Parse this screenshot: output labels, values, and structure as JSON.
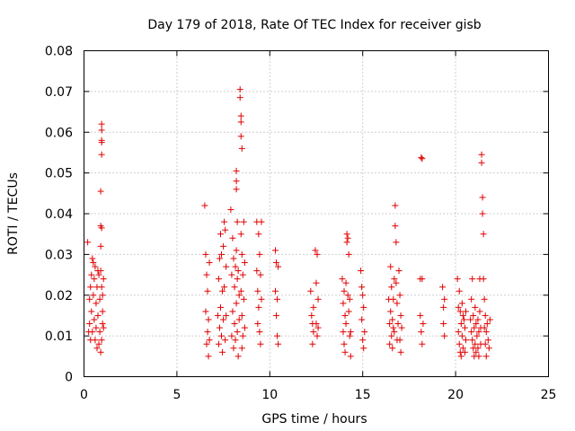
{
  "chart_data": {
    "type": "scatter",
    "title": "Day 179 of 2018, Rate Of TEC Index for receiver gisb",
    "xlabel": "GPS time / hours",
    "ylabel": "ROTI / TECUs",
    "xlim": [
      0,
      25
    ],
    "ylim": [
      0,
      0.08
    ],
    "xticks": [
      0,
      5,
      10,
      15,
      20,
      25
    ],
    "xtick_labels": [
      "0",
      "5",
      "10",
      "15",
      "20",
      "25"
    ],
    "yticks": [
      0,
      0.01,
      0.02,
      0.03,
      0.04,
      0.05,
      0.06,
      0.07,
      0.08
    ],
    "ytick_labels": [
      "0",
      "0.01",
      "0.02",
      "0.03",
      "0.04",
      "0.05",
      "0.06",
      "0.07",
      "0.08"
    ],
    "grid": true,
    "marker": "+",
    "color": "#e00000",
    "series": [
      {
        "name": "ROTI",
        "points": [
          [
            0.2,
            0.033
          ],
          [
            0.25,
            0.011
          ],
          [
            0.3,
            0.019
          ],
          [
            0.3,
            0.013
          ],
          [
            0.35,
            0.022
          ],
          [
            0.35,
            0.009
          ],
          [
            0.4,
            0.016
          ],
          [
            0.4,
            0.025
          ],
          [
            0.45,
            0.029
          ],
          [
            0.45,
            0.011
          ],
          [
            0.5,
            0.028
          ],
          [
            0.5,
            0.02
          ],
          [
            0.55,
            0.024
          ],
          [
            0.55,
            0.014
          ],
          [
            0.6,
            0.027
          ],
          [
            0.6,
            0.009
          ],
          [
            0.65,
            0.018
          ],
          [
            0.65,
            0.012
          ],
          [
            0.7,
            0.022
          ],
          [
            0.7,
            0.007
          ],
          [
            0.75,
            0.026
          ],
          [
            0.75,
            0.015
          ],
          [
            0.8,
            0.025
          ],
          [
            0.8,
            0.008
          ],
          [
            0.85,
            0.019
          ],
          [
            0.85,
            0.011
          ],
          [
            0.9,
            0.0455
          ],
          [
            0.9,
            0.037
          ],
          [
            0.9,
            0.032
          ],
          [
            0.9,
            0.026
          ],
          [
            0.9,
            0.006
          ],
          [
            0.95,
            0.062
          ],
          [
            0.95,
            0.0605
          ],
          [
            0.95,
            0.058
          ],
          [
            0.95,
            0.0575
          ],
          [
            0.95,
            0.0545
          ],
          [
            0.95,
            0.0365
          ],
          [
            0.95,
            0.022
          ],
          [
            0.95,
            0.009
          ],
          [
            1.0,
            0.02
          ],
          [
            1.0,
            0.013
          ],
          [
            1.0,
            0.016
          ],
          [
            1.05,
            0.024
          ],
          [
            1.05,
            0.012
          ],
          [
            6.5,
            0.042
          ],
          [
            6.55,
            0.03
          ],
          [
            6.55,
            0.016
          ],
          [
            6.6,
            0.025
          ],
          [
            6.6,
            0.008
          ],
          [
            6.65,
            0.021
          ],
          [
            6.65,
            0.011
          ],
          [
            6.7,
            0.014
          ],
          [
            6.7,
            0.005
          ],
          [
            6.75,
            0.028
          ],
          [
            6.75,
            0.009
          ],
          [
            7.2,
            0.015
          ],
          [
            7.25,
            0.024
          ],
          [
            7.25,
            0.008
          ],
          [
            7.3,
            0.029
          ],
          [
            7.3,
            0.012
          ],
          [
            7.35,
            0.035
          ],
          [
            7.35,
            0.017
          ],
          [
            7.4,
            0.03
          ],
          [
            7.4,
            0.01
          ],
          [
            7.45,
            0.021
          ],
          [
            7.45,
            0.006
          ],
          [
            7.5,
            0.032
          ],
          [
            7.5,
            0.014
          ],
          [
            7.55,
            0.038
          ],
          [
            7.55,
            0.022
          ],
          [
            7.6,
            0.036
          ],
          [
            7.6,
            0.009
          ],
          [
            7.65,
            0.027
          ],
          [
            7.65,
            0.015
          ],
          [
            7.9,
            0.041
          ],
          [
            7.95,
            0.025
          ],
          [
            7.95,
            0.01
          ],
          [
            8.0,
            0.034
          ],
          [
            8.0,
            0.016
          ],
          [
            8.05,
            0.029
          ],
          [
            8.05,
            0.007
          ],
          [
            8.1,
            0.022
          ],
          [
            8.1,
            0.013
          ],
          [
            8.15,
            0.027
          ],
          [
            8.15,
            0.009
          ],
          [
            8.2,
            0.0505
          ],
          [
            8.2,
            0.048
          ],
          [
            8.2,
            0.046
          ],
          [
            8.2,
            0.031
          ],
          [
            8.2,
            0.018
          ],
          [
            8.25,
            0.038
          ],
          [
            8.25,
            0.024
          ],
          [
            8.25,
            0.011
          ],
          [
            8.3,
            0.026
          ],
          [
            8.3,
            0.005
          ],
          [
            8.35,
            0.02
          ],
          [
            8.35,
            0.014
          ],
          [
            8.4,
            0.0705
          ],
          [
            8.4,
            0.0685
          ],
          [
            8.45,
            0.064
          ],
          [
            8.45,
            0.0625
          ],
          [
            8.45,
            0.059
          ],
          [
            8.45,
            0.035
          ],
          [
            8.45,
            0.021
          ],
          [
            8.5,
            0.056
          ],
          [
            8.5,
            0.03
          ],
          [
            8.5,
            0.015
          ],
          [
            8.5,
            0.007
          ],
          [
            8.55,
            0.025
          ],
          [
            8.55,
            0.01
          ],
          [
            8.6,
            0.038
          ],
          [
            8.6,
            0.019
          ],
          [
            8.65,
            0.028
          ],
          [
            8.65,
            0.012
          ],
          [
            9.3,
            0.038
          ],
          [
            9.3,
            0.026
          ],
          [
            9.35,
            0.021
          ],
          [
            9.35,
            0.013
          ],
          [
            9.4,
            0.035
          ],
          [
            9.4,
            0.017
          ],
          [
            9.45,
            0.03
          ],
          [
            9.45,
            0.011
          ],
          [
            9.5,
            0.025
          ],
          [
            9.5,
            0.008
          ],
          [
            9.55,
            0.038
          ],
          [
            9.55,
            0.019
          ],
          [
            10.3,
            0.031
          ],
          [
            10.3,
            0.021
          ],
          [
            10.35,
            0.028
          ],
          [
            10.35,
            0.015
          ],
          [
            10.4,
            0.019
          ],
          [
            10.4,
            0.01
          ],
          [
            10.45,
            0.027
          ],
          [
            10.45,
            0.008
          ],
          [
            12.2,
            0.021
          ],
          [
            12.25,
            0.015
          ],
          [
            12.3,
            0.013
          ],
          [
            12.3,
            0.008
          ],
          [
            12.35,
            0.017
          ],
          [
            12.35,
            0.011
          ],
          [
            12.45,
            0.031
          ],
          [
            12.5,
            0.023
          ],
          [
            12.5,
            0.013
          ],
          [
            12.55,
            0.03
          ],
          [
            12.55,
            0.01
          ],
          [
            12.6,
            0.019
          ],
          [
            12.6,
            0.012
          ],
          [
            13.9,
            0.024
          ],
          [
            13.95,
            0.018
          ],
          [
            13.95,
            0.011
          ],
          [
            14.0,
            0.021
          ],
          [
            14.0,
            0.008
          ],
          [
            14.05,
            0.015
          ],
          [
            14.05,
            0.006
          ],
          [
            14.1,
            0.023
          ],
          [
            14.1,
            0.013
          ],
          [
            14.15,
            0.035
          ],
          [
            14.15,
            0.033
          ],
          [
            14.2,
            0.034
          ],
          [
            14.2,
            0.02
          ],
          [
            14.25,
            0.03
          ],
          [
            14.25,
            0.016
          ],
          [
            14.3,
            0.019
          ],
          [
            14.3,
            0.01
          ],
          [
            14.35,
            0.011
          ],
          [
            14.35,
            0.005
          ],
          [
            14.9,
            0.026
          ],
          [
            14.95,
            0.022
          ],
          [
            14.95,
            0.014
          ],
          [
            15.0,
            0.02
          ],
          [
            15.0,
            0.009
          ],
          [
            15.05,
            0.017
          ],
          [
            15.05,
            0.007
          ],
          [
            15.1,
            0.011
          ],
          [
            16.4,
            0.019
          ],
          [
            16.45,
            0.013
          ],
          [
            16.45,
            0.008
          ],
          [
            16.5,
            0.027
          ],
          [
            16.5,
            0.016
          ],
          [
            16.55,
            0.022
          ],
          [
            16.55,
            0.01
          ],
          [
            16.6,
            0.014
          ],
          [
            16.6,
            0.007
          ],
          [
            16.65,
            0.012
          ],
          [
            16.65,
            0.019
          ],
          [
            16.7,
            0.024
          ],
          [
            16.7,
            0.011
          ],
          [
            16.75,
            0.042
          ],
          [
            16.75,
            0.037
          ],
          [
            16.8,
            0.033
          ],
          [
            16.8,
            0.023
          ],
          [
            16.85,
            0.018
          ],
          [
            16.85,
            0.009
          ],
          [
            16.9,
            0.013
          ],
          [
            16.95,
            0.026
          ],
          [
            17.0,
            0.02
          ],
          [
            17.0,
            0.009
          ],
          [
            17.05,
            0.015
          ],
          [
            17.05,
            0.006
          ],
          [
            17.1,
            0.012
          ],
          [
            18.1,
            0.024
          ],
          [
            18.1,
            0.015
          ],
          [
            18.15,
            0.0538
          ],
          [
            18.15,
            0.011
          ],
          [
            18.2,
            0.0535
          ],
          [
            18.2,
            0.024
          ],
          [
            18.2,
            0.008
          ],
          [
            18.25,
            0.013
          ],
          [
            19.3,
            0.022
          ],
          [
            19.35,
            0.017
          ],
          [
            19.35,
            0.013
          ],
          [
            19.4,
            0.019
          ],
          [
            19.4,
            0.01
          ],
          [
            20.1,
            0.024
          ],
          [
            20.15,
            0.017
          ],
          [
            20.15,
            0.011
          ],
          [
            20.2,
            0.021
          ],
          [
            20.2,
            0.008
          ],
          [
            20.25,
            0.016
          ],
          [
            20.25,
            0.006
          ],
          [
            20.3,
            0.013
          ],
          [
            20.3,
            0.005
          ],
          [
            20.35,
            0.018
          ],
          [
            20.35,
            0.01
          ],
          [
            20.4,
            0.015
          ],
          [
            20.4,
            0.007
          ],
          [
            20.45,
            0.014
          ],
          [
            20.5,
            0.012
          ],
          [
            20.5,
            0.006
          ],
          [
            20.55,
            0.016
          ],
          [
            20.55,
            0.009
          ],
          [
            20.8,
            0.014
          ],
          [
            20.85,
            0.019
          ],
          [
            20.85,
            0.011
          ],
          [
            20.9,
            0.024
          ],
          [
            20.9,
            0.009
          ],
          [
            20.95,
            0.015
          ],
          [
            20.95,
            0.007
          ],
          [
            21.0,
            0.012
          ],
          [
            21.0,
            0.005
          ],
          [
            21.05,
            0.017
          ],
          [
            21.05,
            0.008
          ],
          [
            21.1,
            0.013
          ],
          [
            21.1,
            0.006
          ],
          [
            21.15,
            0.01
          ],
          [
            21.2,
            0.014
          ],
          [
            21.2,
            0.007
          ],
          [
            21.25,
            0.011
          ],
          [
            21.25,
            0.005
          ],
          [
            21.3,
            0.024
          ],
          [
            21.3,
            0.016
          ],
          [
            21.35,
            0.012
          ],
          [
            21.35,
            0.008
          ],
          [
            21.4,
            0.0545
          ],
          [
            21.4,
            0.0525
          ],
          [
            21.45,
            0.044
          ],
          [
            21.45,
            0.04
          ],
          [
            21.5,
            0.035
          ],
          [
            21.5,
            0.024
          ],
          [
            21.55,
            0.019
          ],
          [
            21.55,
            0.012
          ],
          [
            21.6,
            0.015
          ],
          [
            21.6,
            0.008
          ],
          [
            21.65,
            0.011
          ],
          [
            21.65,
            0.005
          ],
          [
            21.7,
            0.013
          ],
          [
            21.75,
            0.009
          ],
          [
            21.8,
            0.007
          ],
          [
            21.85,
            0.014
          ]
        ]
      }
    ]
  }
}
